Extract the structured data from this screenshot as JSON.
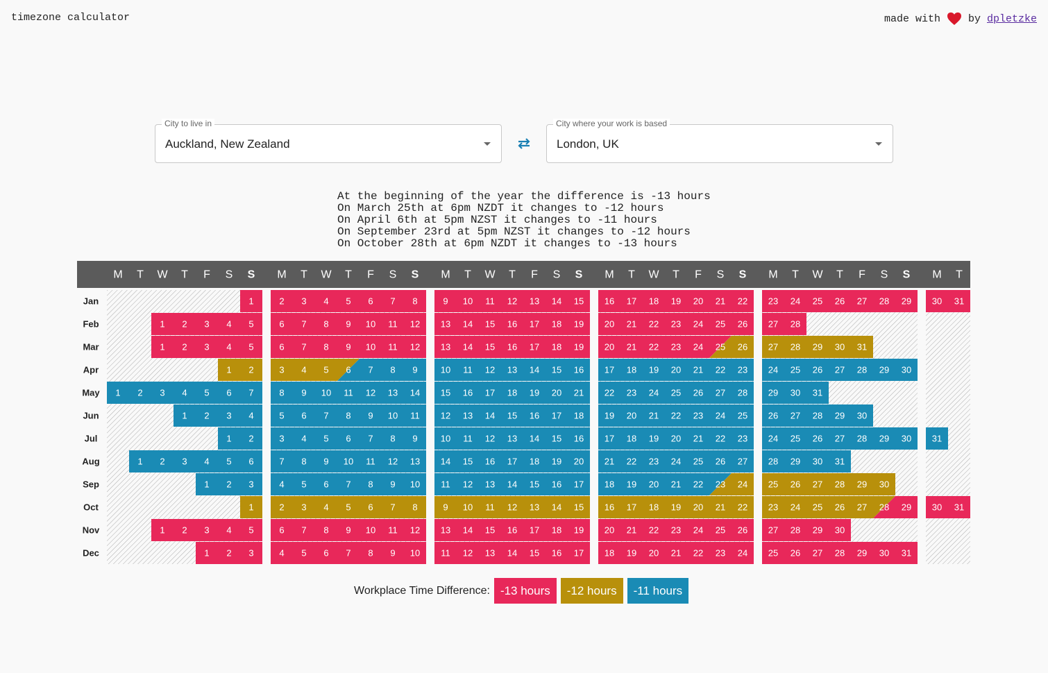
{
  "header": {
    "title": "timezone calculator",
    "credit_prefix": "made with",
    "credit_by": "by",
    "credit_link": "dpletzke"
  },
  "inputs": [
    {
      "label": "City to live in",
      "value": "Auckland, New Zealand"
    },
    {
      "label": "City where your work is based",
      "value": "London, UK"
    }
  ],
  "summary": [
    "At the beginning of the year the difference is -13 hours",
    "On March 25th at 6pm NZDT it changes to -12 hours",
    "On April 6th at 5pm NZST it changes to -11 hours",
    "On September 23rd at 5pm NZST it changes to -12 hours",
    "On October 28th at 6pm NZDT it changes to -13 hours"
  ],
  "calendar": {
    "weekdays": [
      "M",
      "T",
      "W",
      "T",
      "F",
      "S",
      "S",
      "M",
      "T",
      "W",
      "T",
      "F",
      "S",
      "S",
      "M",
      "T",
      "W",
      "T",
      "F",
      "S",
      "S",
      "M",
      "T",
      "W",
      "T",
      "F",
      "S",
      "S",
      "M",
      "T",
      "W",
      "T",
      "F",
      "S",
      "S",
      "M",
      "T"
    ],
    "months": [
      {
        "label": "Jan",
        "days": [
          null,
          null,
          null,
          null,
          null,
          null,
          1,
          2,
          3,
          4,
          5,
          6,
          7,
          8,
          9,
          10,
          11,
          12,
          13,
          14,
          15,
          16,
          17,
          18,
          19,
          20,
          21,
          22,
          23,
          24,
          25,
          26,
          27,
          28,
          29,
          30,
          31
        ],
        "zones": [
          null,
          null,
          null,
          null,
          null,
          null,
          0,
          0,
          0,
          0,
          0,
          0,
          0,
          0,
          0,
          0,
          0,
          0,
          0,
          0,
          0,
          0,
          0,
          0,
          0,
          0,
          0,
          0,
          0,
          0,
          0,
          0,
          0,
          0,
          0,
          0,
          0
        ]
      },
      {
        "label": "Feb",
        "days": [
          null,
          null,
          1,
          2,
          3,
          4,
          5,
          6,
          7,
          8,
          9,
          10,
          11,
          12,
          13,
          14,
          15,
          16,
          17,
          18,
          19,
          20,
          21,
          22,
          23,
          24,
          25,
          26,
          27,
          28
        ],
        "zones": [
          null,
          null,
          0,
          0,
          0,
          0,
          0,
          0,
          0,
          0,
          0,
          0,
          0,
          0,
          0,
          0,
          0,
          0,
          0,
          0,
          0,
          0,
          0,
          0,
          0,
          0,
          0,
          0,
          0,
          0
        ]
      },
      {
        "label": "Mar",
        "days": [
          null,
          null,
          1,
          2,
          3,
          4,
          5,
          6,
          7,
          8,
          9,
          10,
          11,
          12,
          13,
          14,
          15,
          16,
          17,
          18,
          19,
          20,
          21,
          22,
          23,
          24,
          25,
          26,
          27,
          28,
          29,
          30,
          31
        ],
        "zones": [
          null,
          null,
          0,
          0,
          0,
          0,
          0,
          0,
          0,
          0,
          0,
          0,
          0,
          0,
          0,
          0,
          0,
          0,
          0,
          0,
          0,
          0,
          0,
          0,
          0,
          0,
          [
            0,
            1
          ],
          1,
          1,
          1,
          1,
          1,
          1
        ]
      },
      {
        "label": "Apr",
        "days": [
          null,
          null,
          null,
          null,
          null,
          1,
          2,
          3,
          4,
          5,
          6,
          7,
          8,
          9,
          10,
          11,
          12,
          13,
          14,
          15,
          16,
          17,
          18,
          19,
          20,
          21,
          22,
          23,
          24,
          25,
          26,
          27,
          28,
          29,
          30
        ],
        "zones": [
          null,
          null,
          null,
          null,
          null,
          1,
          1,
          1,
          1,
          1,
          [
            1,
            2
          ],
          2,
          2,
          2,
          2,
          2,
          2,
          2,
          2,
          2,
          2,
          2,
          2,
          2,
          2,
          2,
          2,
          2,
          2,
          2,
          2,
          2,
          2,
          2,
          2
        ]
      },
      {
        "label": "May",
        "days": [
          1,
          2,
          3,
          4,
          5,
          6,
          7,
          8,
          9,
          10,
          11,
          12,
          13,
          14,
          15,
          16,
          17,
          18,
          19,
          20,
          21,
          22,
          23,
          24,
          25,
          26,
          27,
          28,
          29,
          30,
          31
        ],
        "zones": [
          2,
          2,
          2,
          2,
          2,
          2,
          2,
          2,
          2,
          2,
          2,
          2,
          2,
          2,
          2,
          2,
          2,
          2,
          2,
          2,
          2,
          2,
          2,
          2,
          2,
          2,
          2,
          2,
          2,
          2,
          2
        ]
      },
      {
        "label": "Jun",
        "days": [
          null,
          null,
          null,
          1,
          2,
          3,
          4,
          5,
          6,
          7,
          8,
          9,
          10,
          11,
          12,
          13,
          14,
          15,
          16,
          17,
          18,
          19,
          20,
          21,
          22,
          23,
          24,
          25,
          26,
          27,
          28,
          29,
          30
        ],
        "zones": [
          null,
          null,
          null,
          2,
          2,
          2,
          2,
          2,
          2,
          2,
          2,
          2,
          2,
          2,
          2,
          2,
          2,
          2,
          2,
          2,
          2,
          2,
          2,
          2,
          2,
          2,
          2,
          2,
          2,
          2,
          2,
          2,
          2
        ]
      },
      {
        "label": "Jul",
        "days": [
          null,
          null,
          null,
          null,
          null,
          1,
          2,
          3,
          4,
          5,
          6,
          7,
          8,
          9,
          10,
          11,
          12,
          13,
          14,
          15,
          16,
          17,
          18,
          19,
          20,
          21,
          22,
          23,
          24,
          25,
          26,
          27,
          28,
          29,
          30,
          31
        ],
        "zones": [
          null,
          null,
          null,
          null,
          null,
          2,
          2,
          2,
          2,
          2,
          2,
          2,
          2,
          2,
          2,
          2,
          2,
          2,
          2,
          2,
          2,
          2,
          2,
          2,
          2,
          2,
          2,
          2,
          2,
          2,
          2,
          2,
          2,
          2,
          2,
          2
        ]
      },
      {
        "label": "Aug",
        "days": [
          null,
          1,
          2,
          3,
          4,
          5,
          6,
          7,
          8,
          9,
          10,
          11,
          12,
          13,
          14,
          15,
          16,
          17,
          18,
          19,
          20,
          21,
          22,
          23,
          24,
          25,
          26,
          27,
          28,
          29,
          30,
          31
        ],
        "zones": [
          null,
          2,
          2,
          2,
          2,
          2,
          2,
          2,
          2,
          2,
          2,
          2,
          2,
          2,
          2,
          2,
          2,
          2,
          2,
          2,
          2,
          2,
          2,
          2,
          2,
          2,
          2,
          2,
          2,
          2,
          2,
          2
        ]
      },
      {
        "label": "Sep",
        "days": [
          null,
          null,
          null,
          null,
          1,
          2,
          3,
          4,
          5,
          6,
          7,
          8,
          9,
          10,
          11,
          12,
          13,
          14,
          15,
          16,
          17,
          18,
          19,
          20,
          21,
          22,
          23,
          24,
          25,
          26,
          27,
          28,
          29,
          30
        ],
        "zones": [
          null,
          null,
          null,
          null,
          2,
          2,
          2,
          2,
          2,
          2,
          2,
          2,
          2,
          2,
          2,
          2,
          2,
          2,
          2,
          2,
          2,
          2,
          2,
          2,
          2,
          2,
          [
            2,
            1
          ],
          1,
          1,
          1,
          1,
          1,
          1,
          1
        ]
      },
      {
        "label": "Oct",
        "days": [
          null,
          null,
          null,
          null,
          null,
          null,
          1,
          2,
          3,
          4,
          5,
          6,
          7,
          8,
          9,
          10,
          11,
          12,
          13,
          14,
          15,
          16,
          17,
          18,
          19,
          20,
          21,
          22,
          23,
          24,
          25,
          26,
          27,
          28,
          29,
          30,
          31
        ],
        "zones": [
          null,
          null,
          null,
          null,
          null,
          null,
          1,
          1,
          1,
          1,
          1,
          1,
          1,
          1,
          1,
          1,
          1,
          1,
          1,
          1,
          1,
          1,
          1,
          1,
          1,
          1,
          1,
          1,
          1,
          1,
          1,
          1,
          1,
          [
            1,
            0
          ],
          0,
          0,
          0
        ]
      },
      {
        "label": "Nov",
        "days": [
          null,
          null,
          1,
          2,
          3,
          4,
          5,
          6,
          7,
          8,
          9,
          10,
          11,
          12,
          13,
          14,
          15,
          16,
          17,
          18,
          19,
          20,
          21,
          22,
          23,
          24,
          25,
          26,
          27,
          28,
          29,
          30
        ],
        "zones": [
          null,
          null,
          0,
          0,
          0,
          0,
          0,
          0,
          0,
          0,
          0,
          0,
          0,
          0,
          0,
          0,
          0,
          0,
          0,
          0,
          0,
          0,
          0,
          0,
          0,
          0,
          0,
          0,
          0,
          0,
          0,
          0
        ]
      },
      {
        "label": "Dec",
        "days": [
          null,
          null,
          null,
          null,
          1,
          2,
          3,
          4,
          5,
          6,
          7,
          8,
          9,
          10,
          11,
          12,
          13,
          14,
          15,
          16,
          17,
          18,
          19,
          20,
          21,
          22,
          23,
          24,
          25,
          26,
          27,
          28,
          29,
          30,
          31
        ],
        "zones": [
          null,
          null,
          null,
          null,
          0,
          0,
          0,
          0,
          0,
          0,
          0,
          0,
          0,
          0,
          0,
          0,
          0,
          0,
          0,
          0,
          0,
          0,
          0,
          0,
          0,
          0,
          0,
          0,
          0,
          0,
          0,
          0,
          0,
          0,
          0
        ]
      }
    ]
  },
  "legend": {
    "title": "Workplace Time Difference:",
    "items": [
      {
        "label": "-13 hours",
        "color": "#e8285a"
      },
      {
        "label": "-12 hours",
        "color": "#b8900b"
      },
      {
        "label": "-11 hours",
        "color": "#1a8bb5"
      }
    ]
  }
}
